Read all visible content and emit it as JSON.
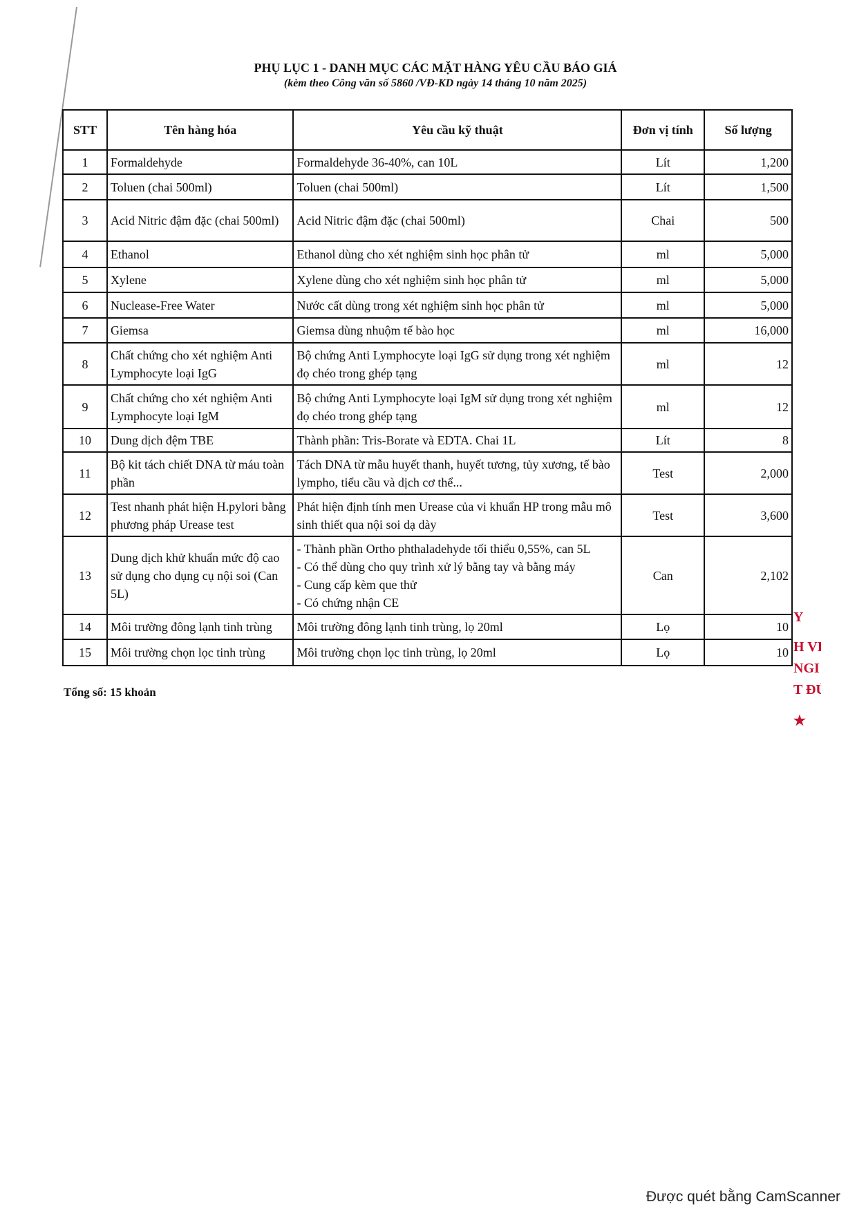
{
  "document": {
    "title": "PHỤ LỤC 1 - DANH MỤC CÁC MẶT HÀNG YÊU CẦU BÁO GIÁ",
    "subtitle": "(kèm theo Công văn số 5860 /VĐ-KD ngày 14 tháng 10 năm 2025)",
    "total": "Tổng số: 15 khoản",
    "scanner_note": "Được quét bằng CamScanner",
    "stamp_fragments": [
      "Y",
      "H VIỆ",
      "NGI",
      "T ĐÚ",
      "★"
    ],
    "stamp_color": "#c8102e"
  },
  "table": {
    "headers": [
      "STT",
      "Tên hàng hóa",
      "Yêu cầu kỹ thuật",
      "Đơn vị tính",
      "Số lượng"
    ],
    "rows": [
      {
        "stt": "1",
        "name": "Formaldehyde",
        "spec": "Formaldehyde 36-40%, can 10L",
        "unit": "Lít",
        "qty": "1,200"
      },
      {
        "stt": "2",
        "name": "Toluen (chai 500ml)",
        "spec": "Toluen (chai 500ml)",
        "unit": "Lít",
        "qty": "1,500"
      },
      {
        "stt": "3",
        "name": "Acid Nitric đậm đặc (chai 500ml)",
        "spec": "Acid Nitric đậm đặc (chai 500ml)",
        "unit": "Chai",
        "qty": "500"
      },
      {
        "stt": "4",
        "name": "Ethanol",
        "spec": "Ethanol dùng cho xét nghiệm sinh học phân tử",
        "unit": "ml",
        "qty": "5,000"
      },
      {
        "stt": "5",
        "name": "Xylene",
        "spec": "Xylene dùng cho xét nghiệm sinh học phân tử",
        "unit": "ml",
        "qty": "5,000"
      },
      {
        "stt": "6",
        "name": "Nuclease-Free Water",
        "spec": "Nước cất dùng trong xét nghiệm sinh học phân tử",
        "unit": "ml",
        "qty": "5,000"
      },
      {
        "stt": "7",
        "name": "Giemsa",
        "spec": "Giemsa dùng nhuộm tế bào học",
        "unit": "ml",
        "qty": "16,000"
      },
      {
        "stt": "8",
        "name": "Chất chứng cho xét nghiệm Anti Lymphocyte loại IgG",
        "spec": "Bộ chứng Anti Lymphocyte loại IgG sử dụng trong xét nghiệm đọ chéo trong ghép tạng",
        "unit": "ml",
        "qty": "12"
      },
      {
        "stt": "9",
        "name": "Chất chứng cho xét nghiệm Anti Lymphocyte loại IgM",
        "spec": "Bộ chứng Anti Lymphocyte loại IgM sử dụng trong xét nghiệm đọ chéo trong ghép tạng",
        "unit": "ml",
        "qty": "12"
      },
      {
        "stt": "10",
        "name": "Dung dịch đệm TBE",
        "spec": "Thành phần: Tris-Borate và EDTA. Chai 1L",
        "unit": "Lít",
        "qty": "8"
      },
      {
        "stt": "11",
        "name": "Bộ kit tách chiết DNA từ máu toàn phần",
        "spec": "Tách DNA từ mẫu huyết thanh, huyết tương, tủy xương, tế bào lympho, tiểu cầu và dịch cơ thể...",
        "unit": "Test",
        "qty": "2,000"
      },
      {
        "stt": "12",
        "name": "Test nhanh phát hiện H.pylori bằng phương pháp Urease test",
        "spec": "Phát hiện định tính men Urease của vi khuẩn HP trong mẫu mô sinh thiết qua nội soi dạ dày",
        "unit": "Test",
        "qty": "3,600"
      },
      {
        "stt": "13",
        "name": "Dung dịch khử khuẩn mức độ cao sử dụng cho dụng cụ nội soi (Can 5L)",
        "spec_lines": [
          "- Thành phần Ortho phthaladehyde tối thiểu 0,55%, can 5L",
          "- Có thể dùng cho quy trình xử lý bằng tay và bằng máy",
          "- Cung cấp kèm que thử",
          "- Có chứng nhận CE"
        ],
        "unit": "Can",
        "qty": "2,102"
      },
      {
        "stt": "14",
        "name": "Môi trường đông lạnh tinh trùng",
        "spec": "Môi trường đông lạnh tinh trùng, lọ 20ml",
        "unit": "Lọ",
        "qty": "10"
      },
      {
        "stt": "15",
        "name": "Môi trường chọn lọc tinh trùng",
        "spec": "Môi trường chọn lọc tinh trùng, lọ 20ml",
        "unit": "Lọ",
        "qty": "10"
      }
    ]
  }
}
